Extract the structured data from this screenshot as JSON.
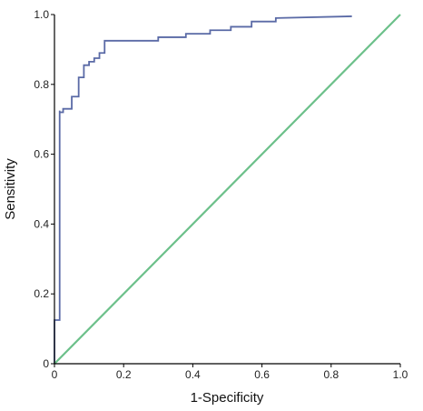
{
  "chart_data": {
    "type": "line",
    "title": "",
    "xlabel": "1-Specificity",
    "ylabel": "Sensitivity",
    "xlim": [
      0,
      1.0
    ],
    "ylim": [
      0,
      1.0
    ],
    "xticks": [
      "0",
      "0.2",
      "0.4",
      "0.6",
      "0.8",
      "1.0"
    ],
    "yticks": [
      "0",
      "0.2",
      "0.4",
      "0.6",
      "0.8",
      "1.0"
    ],
    "grid": false,
    "legend": "none",
    "series": [
      {
        "colour": "#5a6aa6",
        "style": "step",
        "x": [
          0.0,
          0.0,
          0.015,
          0.015,
          0.015,
          0.025,
          0.025,
          0.05,
          0.05,
          0.07,
          0.07,
          0.085,
          0.085,
          0.1,
          0.1,
          0.115,
          0.115,
          0.13,
          0.13,
          0.145,
          0.145,
          0.2,
          0.3,
          0.3,
          0.38,
          0.38,
          0.45,
          0.45,
          0.51,
          0.51,
          0.57,
          0.57,
          0.64,
          0.64,
          0.86
        ],
        "y": [
          0.0,
          0.125,
          0.125,
          0.725,
          0.72,
          0.72,
          0.73,
          0.73,
          0.765,
          0.765,
          0.82,
          0.82,
          0.855,
          0.855,
          0.865,
          0.865,
          0.875,
          0.875,
          0.89,
          0.89,
          0.925,
          0.925,
          0.925,
          0.935,
          0.935,
          0.945,
          0.945,
          0.955,
          0.955,
          0.965,
          0.965,
          0.98,
          0.98,
          0.99,
          0.995
        ]
      },
      {
        "colour": "#6cc08a",
        "style": "line",
        "x": [
          0,
          1.0
        ],
        "y": [
          0,
          1.0
        ]
      }
    ]
  }
}
